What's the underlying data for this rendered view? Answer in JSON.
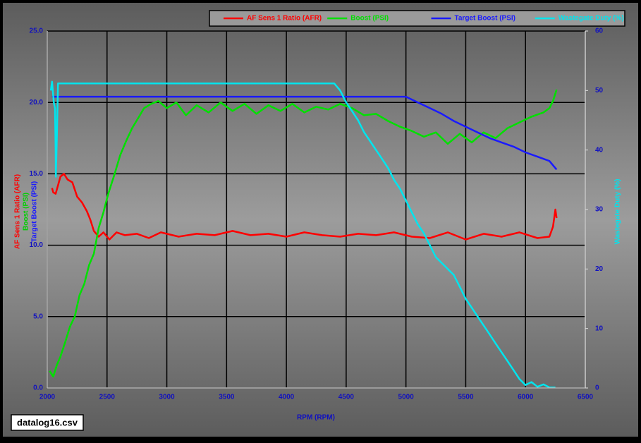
{
  "chart_data": {
    "type": "line",
    "x_label": "RPM (RPM)",
    "file_label": "datalog16.csv",
    "xlim": [
      2000,
      6500
    ],
    "xticks": [
      2000,
      2500,
      3000,
      3500,
      4000,
      4500,
      5000,
      5500,
      6000,
      6500
    ],
    "ylim": [
      0,
      25
    ],
    "yticks": [
      {
        "value": 0,
        "label": "0.0"
      },
      {
        "value": 5,
        "label": "5.0"
      },
      {
        "value": 10,
        "label": "10.0"
      },
      {
        "value": 15,
        "label": "15.0"
      },
      {
        "value": 20,
        "label": "20.0"
      },
      {
        "value": 25,
        "label": "25.0"
      }
    ],
    "y2lim": [
      0,
      60
    ],
    "y2ticks": [
      0,
      10,
      20,
      30,
      40,
      50,
      60
    ],
    "grid": true,
    "legend": "top",
    "series": [
      {
        "name": "AF Sens 1 Ratio (AFR)",
        "color": "#ff0000",
        "x": [
          2040,
          2050,
          2070,
          2090,
          2110,
          2140,
          2170,
          2210,
          2250,
          2290,
          2330,
          2360,
          2390,
          2430,
          2470,
          2520,
          2580,
          2650,
          2750,
          2850,
          2950,
          3100,
          3250,
          3400,
          3550,
          3700,
          3850,
          4000,
          4150,
          4300,
          4450,
          4600,
          4750,
          4900,
          5050,
          5200,
          5350,
          5500,
          5650,
          5800,
          5950,
          6100,
          6200,
          6230,
          6250,
          6260
        ],
        "values": [
          14.0,
          13.7,
          13.6,
          14.2,
          14.8,
          15.0,
          14.6,
          14.4,
          13.4,
          13.0,
          12.4,
          11.8,
          11.0,
          10.6,
          10.9,
          10.4,
          10.9,
          10.7,
          10.8,
          10.5,
          10.9,
          10.6,
          10.8,
          10.7,
          11.0,
          10.7,
          10.8,
          10.6,
          10.9,
          10.7,
          10.6,
          10.8,
          10.7,
          10.9,
          10.6,
          10.5,
          10.9,
          10.4,
          10.8,
          10.6,
          10.9,
          10.5,
          10.6,
          11.3,
          12.5,
          11.9
        ]
      },
      {
        "name": "Boost (PSI)",
        "color": "#00e000",
        "x": [
          2020,
          2050,
          2080,
          2110,
          2150,
          2190,
          2230,
          2270,
          2310,
          2350,
          2390,
          2430,
          2470,
          2510,
          2560,
          2610,
          2660,
          2710,
          2760,
          2810,
          2870,
          2930,
          3000,
          3080,
          3160,
          3250,
          3350,
          3450,
          3550,
          3650,
          3750,
          3850,
          3950,
          4050,
          4150,
          4250,
          4350,
          4450,
          4550,
          4650,
          4750,
          4850,
          4950,
          5050,
          5150,
          5250,
          5350,
          5450,
          5550,
          5650,
          5750,
          5850,
          5950,
          6050,
          6150,
          6200,
          6230,
          6260
        ],
        "values": [
          1.2,
          0.8,
          1.6,
          2.2,
          3.2,
          4.3,
          5.0,
          6.5,
          7.3,
          8.6,
          9.4,
          11.2,
          12.3,
          13.6,
          14.9,
          16.3,
          17.3,
          18.2,
          18.9,
          19.6,
          19.9,
          20.1,
          19.6,
          20.0,
          19.1,
          19.8,
          19.3,
          20.0,
          19.4,
          19.9,
          19.2,
          19.8,
          19.4,
          19.9,
          19.3,
          19.7,
          19.5,
          19.9,
          19.6,
          19.1,
          19.2,
          18.7,
          18.3,
          18.0,
          17.6,
          17.9,
          17.1,
          17.8,
          17.2,
          17.9,
          17.5,
          18.2,
          18.6,
          19.0,
          19.3,
          19.6,
          20.1,
          20.9
        ]
      },
      {
        "name": "Target Boost (PSI)",
        "color": "#1a1aff",
        "x": [
          2040,
          2500,
          3000,
          3500,
          4000,
          4500,
          5000,
          5100,
          5200,
          5300,
          5400,
          5500,
          5600,
          5700,
          5800,
          5900,
          6000,
          6100,
          6200,
          6240,
          6260
        ],
        "values": [
          20.4,
          20.4,
          20.4,
          20.4,
          20.4,
          20.4,
          20.4,
          20.0,
          19.6,
          19.2,
          18.7,
          18.3,
          17.9,
          17.5,
          17.2,
          16.9,
          16.5,
          16.2,
          15.9,
          15.5,
          15.3
        ]
      },
      {
        "name": "Wastegate Duty (%)",
        "color": "#00e5ee",
        "axis": "y2",
        "x": [
          2030,
          2040,
          2055,
          2065,
          2070,
          2072,
          2080,
          2090,
          2200,
          2500,
          3000,
          3500,
          4000,
          4400,
          4450,
          4500,
          4550,
          4600,
          4650,
          4700,
          4750,
          4800,
          4850,
          4900,
          4950,
          5000,
          5050,
          5100,
          5150,
          5200,
          5250,
          5300,
          5350,
          5400,
          5450,
          5500,
          5550,
          5600,
          5650,
          5700,
          5750,
          5800,
          5850,
          5900,
          5950,
          6000,
          6050,
          6100,
          6150,
          6200,
          6250
        ],
        "values": [
          50.0,
          51.5,
          48.0,
          47.0,
          40.0,
          35.5,
          42.0,
          51.2,
          51.2,
          51.2,
          51.2,
          51.2,
          51.2,
          51.2,
          50.0,
          48.0,
          46.5,
          45.0,
          43.0,
          41.5,
          40.0,
          38.5,
          37.0,
          35.0,
          33.5,
          31.5,
          29.5,
          27.5,
          26.0,
          24.0,
          22.0,
          21.0,
          20.0,
          19.0,
          17.0,
          15.0,
          13.5,
          12.0,
          10.5,
          9.0,
          7.5,
          6.0,
          4.5,
          3.0,
          1.5,
          0.5,
          1.0,
          0.2,
          0.6,
          0.1,
          0.1
        ]
      }
    ]
  }
}
